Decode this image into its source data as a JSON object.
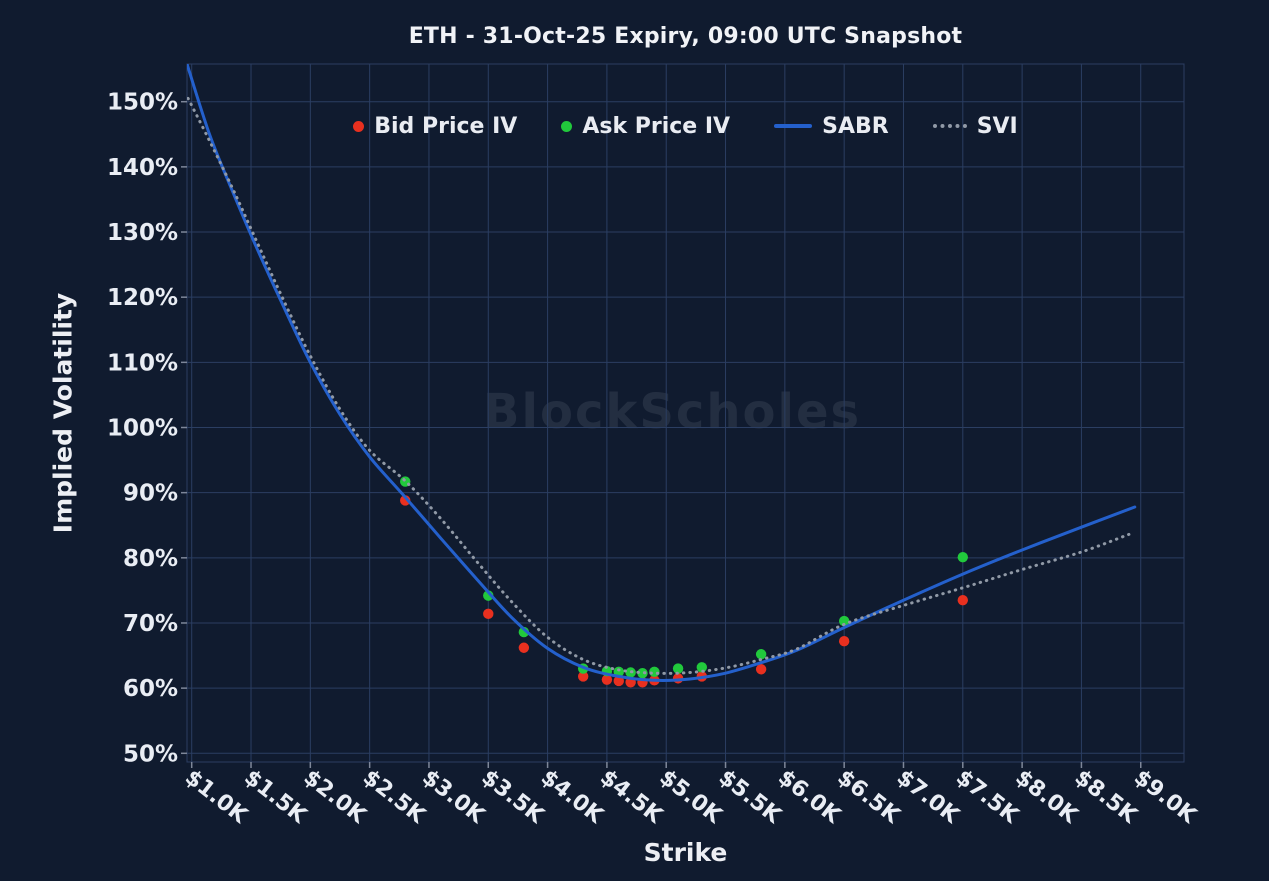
{
  "title": "ETH - 31-Oct-25 Expiry, 09:00 UTC Snapshot",
  "watermark": "BlockScholes",
  "colors": {
    "background": "#101b2f",
    "gridline": "#2b3e62",
    "tick_mark": "#7e879a",
    "text": "#e9edf4",
    "bid": "#e8301f",
    "ask": "#21c93c",
    "sabr": "#2460cc",
    "svi": "#9099a6"
  },
  "legend": {
    "items": [
      {
        "label": "Bid Price IV",
        "marker": "dot"
      },
      {
        "label": "Ask Price IV",
        "marker": "dot"
      },
      {
        "label": "SABR",
        "marker": "line"
      },
      {
        "label": "SVI",
        "marker": "dotted-line"
      }
    ]
  },
  "chart_data": {
    "type": "line",
    "title": "ETH - 31-Oct-25 Expiry, 09:00 UTC Snapshot",
    "xlabel": "Strike",
    "ylabel": "Implied Volatility",
    "xlim": [
      0.96,
      9.37
    ],
    "ylim": [
      48.6,
      155.8
    ],
    "grid": true,
    "legend_position": "top-center-inside",
    "x_tick_labels": [
      "$1.0K",
      "$1.5K",
      "$2.0K",
      "$2.5K",
      "$3.0K",
      "$3.5K",
      "$4.0K",
      "$4.5K",
      "$5.0K",
      "$5.5K",
      "$6.0K",
      "$6.5K",
      "$7.0K",
      "$7.5K",
      "$8.0K",
      "$8.5K",
      "$9.0K"
    ],
    "x_tick_values": [
      1.0,
      1.5,
      2.0,
      2.5,
      3.0,
      3.5,
      4.0,
      4.5,
      5.0,
      5.5,
      6.0,
      6.5,
      7.0,
      7.5,
      8.0,
      8.5,
      9.0
    ],
    "y_tick_labels": [
      "50%",
      "60%",
      "70%",
      "80%",
      "90%",
      "100%",
      "110%",
      "120%",
      "130%",
      "140%",
      "150%"
    ],
    "y_tick_values": [
      50,
      60,
      70,
      80,
      90,
      100,
      110,
      120,
      130,
      140,
      150
    ],
    "series": [
      {
        "name": "Bid Price IV",
        "type": "scatter",
        "color": "#e8301f",
        "x": [
          2.8,
          3.5,
          3.8,
          4.3,
          4.5,
          4.6,
          4.7,
          4.8,
          4.9,
          5.1,
          5.3,
          5.8,
          6.5,
          7.5
        ],
        "y": [
          88.8,
          71.4,
          66.2,
          61.8,
          61.3,
          61.1,
          60.9,
          60.9,
          61.2,
          61.5,
          61.8,
          62.9,
          67.2,
          73.5
        ]
      },
      {
        "name": "Ask Price IV",
        "type": "scatter",
        "color": "#21c93c",
        "x": [
          2.8,
          3.5,
          3.8,
          4.3,
          4.5,
          4.6,
          4.7,
          4.8,
          4.9,
          5.1,
          5.3,
          5.8,
          6.5,
          7.5
        ],
        "y": [
          91.7,
          74.2,
          68.6,
          63.0,
          62.6,
          62.5,
          62.4,
          62.3,
          62.5,
          63.0,
          63.2,
          65.2,
          70.3,
          80.1
        ]
      },
      {
        "name": "SABR",
        "type": "line",
        "style": "solid",
        "color": "#2460cc",
        "x": [
          0.96,
          1.15,
          1.35,
          1.55,
          1.75,
          2.0,
          2.25,
          2.5,
          2.8,
          3.1,
          3.4,
          3.7,
          4.0,
          4.3,
          4.6,
          4.9,
          5.2,
          5.5,
          5.8,
          6.1,
          6.5,
          7.0,
          7.5,
          8.0,
          8.5,
          8.95
        ],
        "y": [
          155.8,
          145.0,
          136.0,
          127.5,
          119.5,
          110.0,
          102.0,
          95.5,
          89.3,
          83.0,
          76.8,
          70.8,
          66.1,
          63.2,
          61.8,
          61.2,
          61.4,
          62.3,
          63.9,
          65.8,
          69.3,
          73.5,
          77.5,
          81.2,
          84.7,
          87.8
        ]
      },
      {
        "name": "SVI",
        "type": "line",
        "style": "dotted",
        "color": "#9099a6",
        "x": [
          0.97,
          1.15,
          1.35,
          1.55,
          1.75,
          2.0,
          2.25,
          2.5,
          2.8,
          3.1,
          3.4,
          3.7,
          4.0,
          4.3,
          4.6,
          4.9,
          5.2,
          5.5,
          5.8,
          6.1,
          6.5,
          7.0,
          7.5,
          8.0,
          8.5,
          8.9
        ],
        "y": [
          150.5,
          144.0,
          136.5,
          128.5,
          120.5,
          111.0,
          102.8,
          96.5,
          91.8,
          86.0,
          79.5,
          73.2,
          67.8,
          64.4,
          62.8,
          62.3,
          62.4,
          63.1,
          64.4,
          66.0,
          69.8,
          72.7,
          75.4,
          78.2,
          80.9,
          83.6
        ]
      }
    ]
  }
}
